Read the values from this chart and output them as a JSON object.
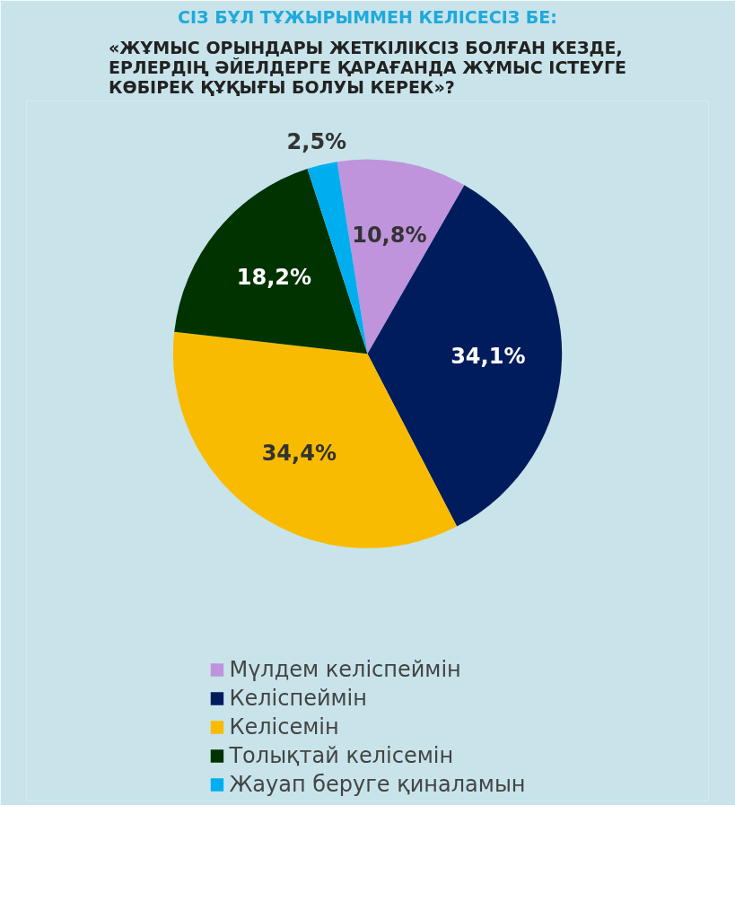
{
  "chart_data": {
    "type": "pie",
    "title": "СІЗ БҰЛ ТҰЖЫРЫММЕН КЕЛІСЕСІЗ БЕ:",
    "subtitle": "«ЖҰМЫС ОРЫНДАРЫ ЖЕТКІЛІКСІЗ БОЛҒАН КЕЗДЕ, ЕРЛЕРДІҢ ӘЙЕЛДЕРГЕ ҚАРАҒАНДА ЖҰМЫС ІСТЕУГЕ КӨБІРЕК ҚҰҚЫҒЫ БОЛУЫ КЕРЕК»?",
    "categories": [
      "Мүлдем келіспеймін",
      "Келіспеймін",
      "Келісемін",
      "Толықтай келісемін",
      "Жауап беруге қиналамын"
    ],
    "values": [
      10.8,
      34.1,
      34.4,
      18.2,
      2.5
    ],
    "colors": [
      "#bf94dc",
      "#001c5c",
      "#f9bb00",
      "#003300",
      "#00aeef"
    ],
    "value_labels": [
      "10,8%",
      "34,1%",
      "34,4%",
      "18,2%",
      "2,5%"
    ],
    "legend": "bottom"
  }
}
